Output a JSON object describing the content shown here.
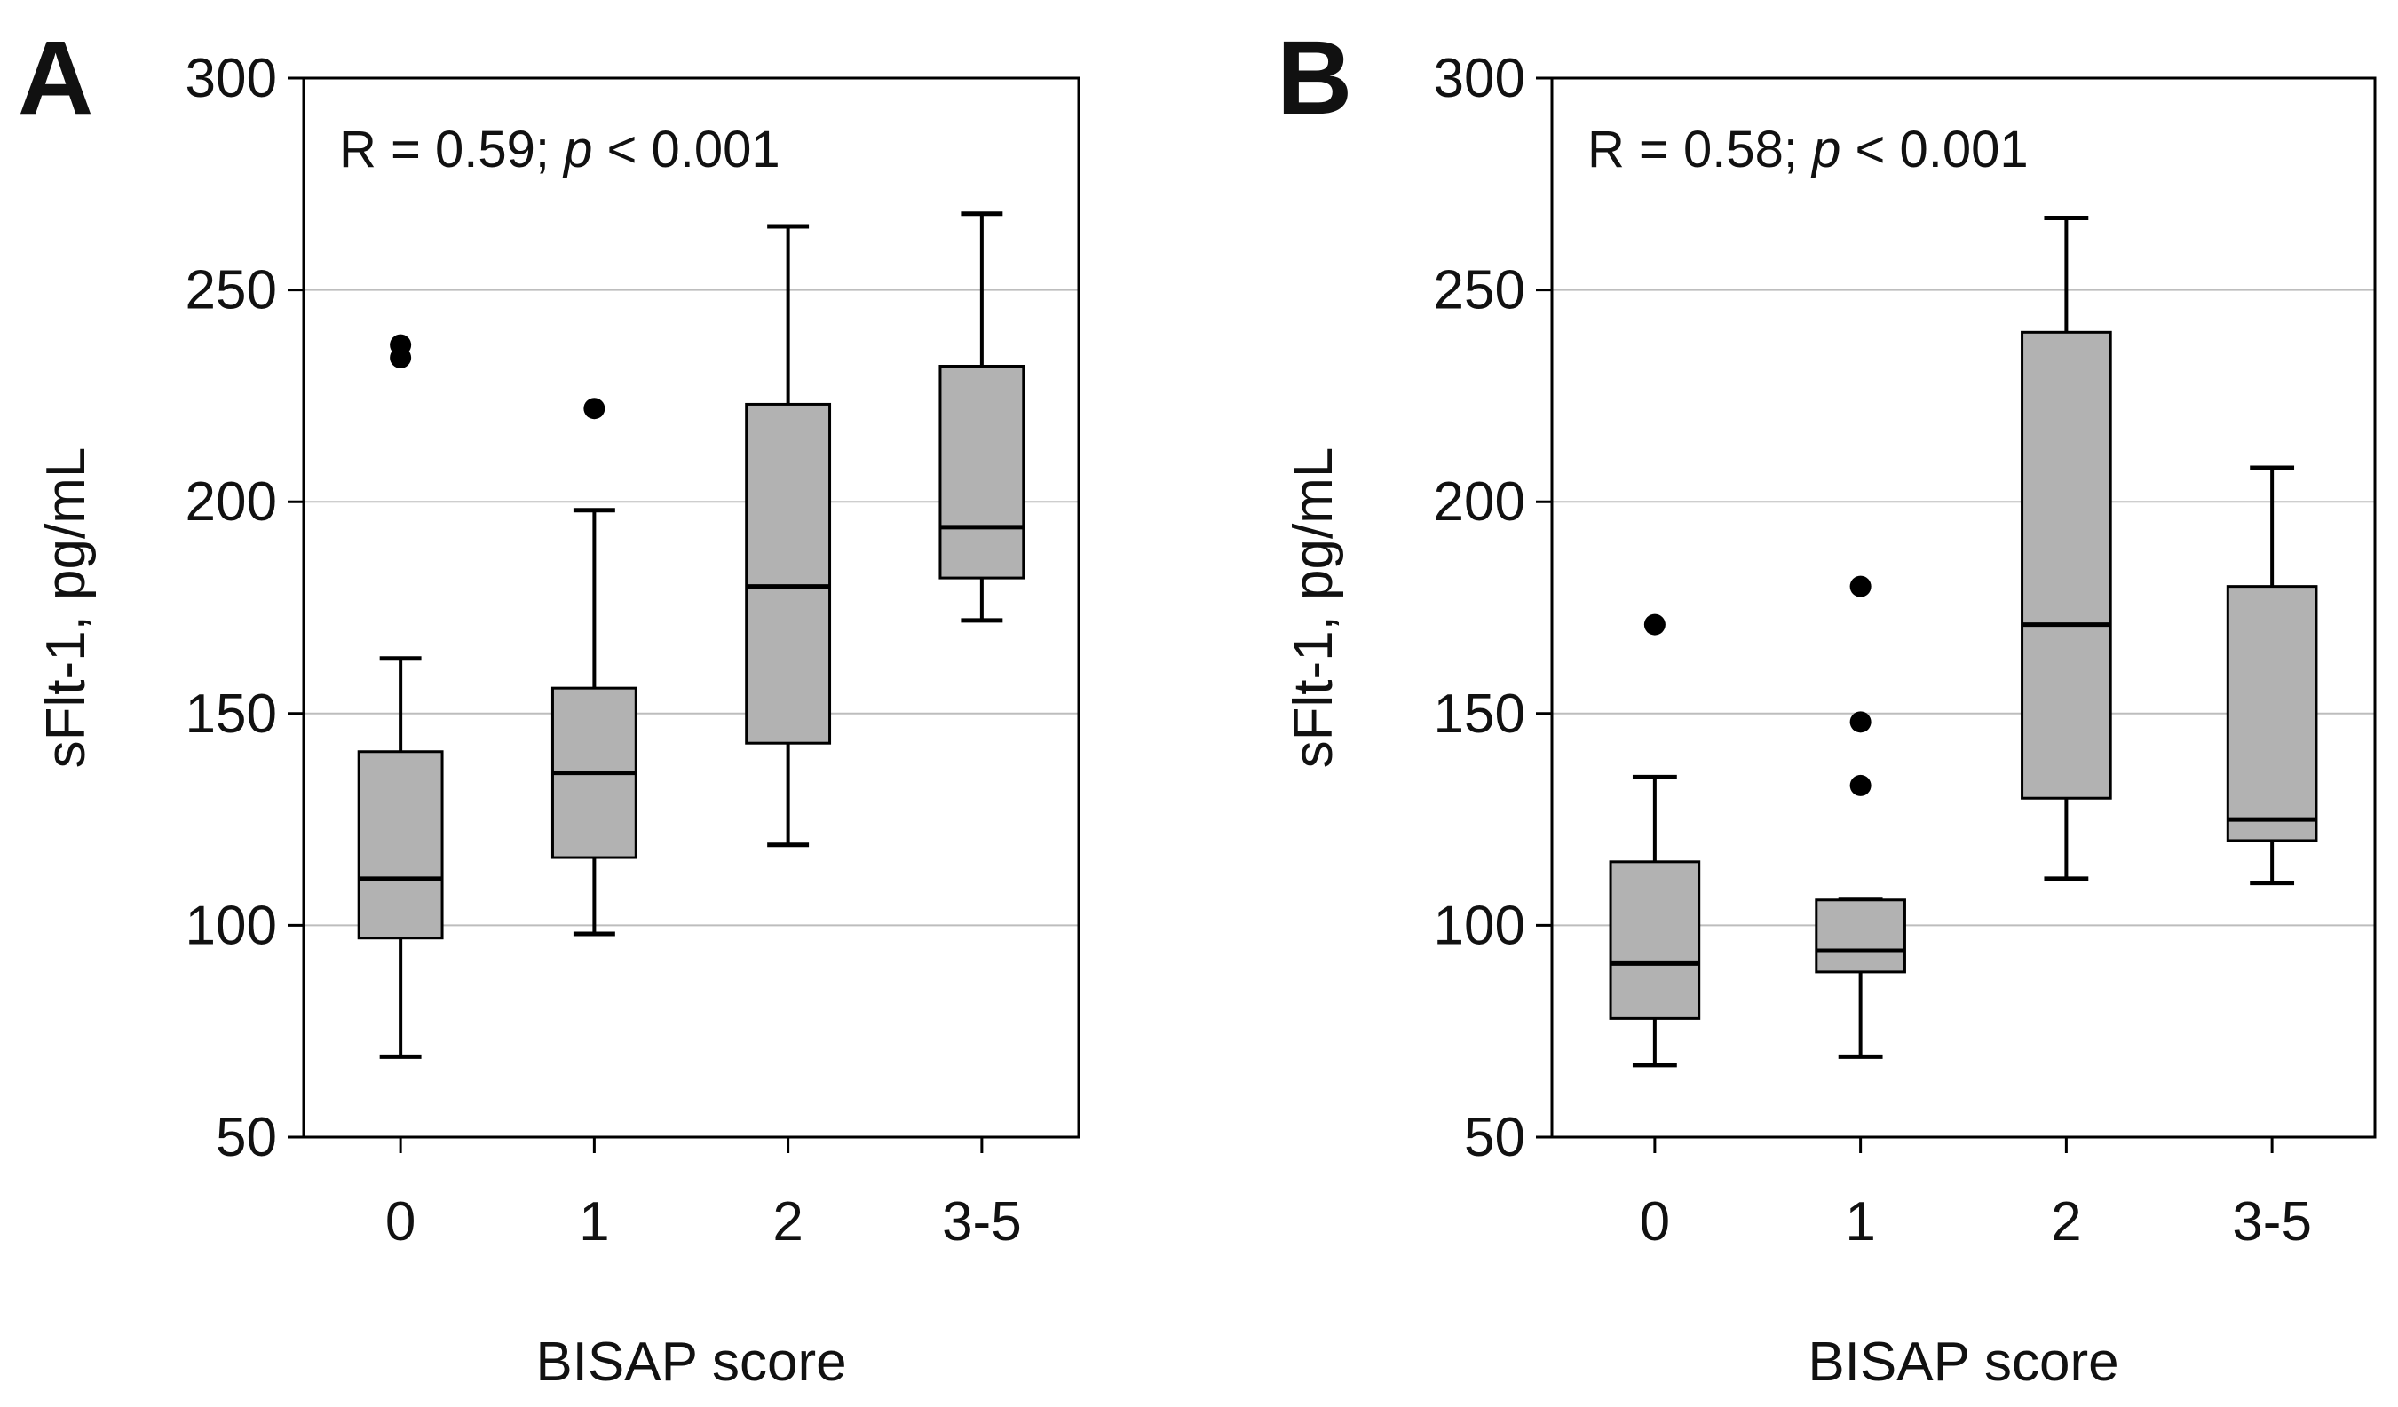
{
  "chart_data": [
    {
      "panel": "A",
      "type": "box",
      "annotation": {
        "prefix": "R = 0.59; ",
        "p_symbol": "p",
        "suffix": " < 0.001"
      },
      "xlabel": "BISAP score",
      "ylabel": "sFlt-1, pg/mL",
      "ylim": [
        50,
        300
      ],
      "yticks": [
        50,
        100,
        150,
        200,
        250,
        300
      ],
      "ytick_labels": [
        "50",
        "100",
        "150",
        "200",
        "250",
        "300"
      ],
      "grid": true,
      "categories": [
        "0",
        "1",
        "2",
        "3-5"
      ],
      "boxes": [
        {
          "category": "0",
          "whisker_low": 69,
          "q1": 97,
          "median": 111,
          "q3": 141,
          "whisker_high": 163,
          "outliers": [
            234,
            237
          ]
        },
        {
          "category": "1",
          "whisker_low": 98,
          "q1": 116,
          "median": 136,
          "q3": 156,
          "whisker_high": 198,
          "outliers": [
            222
          ]
        },
        {
          "category": "2",
          "whisker_low": 119,
          "q1": 143,
          "median": 180,
          "q3": 223,
          "whisker_high": 265,
          "outliers": []
        },
        {
          "category": "3-5",
          "whisker_low": 172,
          "q1": 182,
          "median": 194,
          "q3": 232,
          "whisker_high": 268,
          "outliers": []
        }
      ]
    },
    {
      "panel": "B",
      "type": "box",
      "annotation": {
        "prefix": "R = 0.58; ",
        "p_symbol": "p",
        "suffix": " < 0.001"
      },
      "xlabel": "BISAP score",
      "ylabel": "sFlt-1, pg/mL",
      "ylim": [
        50,
        300
      ],
      "yticks": [
        50,
        100,
        150,
        200,
        250,
        300
      ],
      "ytick_labels": [
        "50",
        "100",
        "150",
        "200",
        "250",
        "300"
      ],
      "grid": true,
      "categories": [
        "0",
        "1",
        "2",
        "3-5"
      ],
      "boxes": [
        {
          "category": "0",
          "whisker_low": 67,
          "q1": 78,
          "median": 91,
          "q3": 115,
          "whisker_high": 135,
          "outliers": [
            171
          ]
        },
        {
          "category": "1",
          "whisker_low": 69,
          "q1": 89,
          "median": 94,
          "q3": 106,
          "whisker_high": 106,
          "outliers": [
            133,
            148,
            180
          ]
        },
        {
          "category": "2",
          "whisker_low": 111,
          "q1": 130,
          "median": 171,
          "q3": 240,
          "whisker_high": 267,
          "outliers": []
        },
        {
          "category": "3-5",
          "whisker_low": 110,
          "q1": 120,
          "median": 125,
          "q3": 180,
          "whisker_high": 208,
          "outliers": []
        }
      ]
    }
  ],
  "colors": {
    "box_fill": "#b2b2b2",
    "line": "#000000",
    "grid": "#bdbdbd",
    "text": "#111111",
    "background": "#ffffff"
  }
}
